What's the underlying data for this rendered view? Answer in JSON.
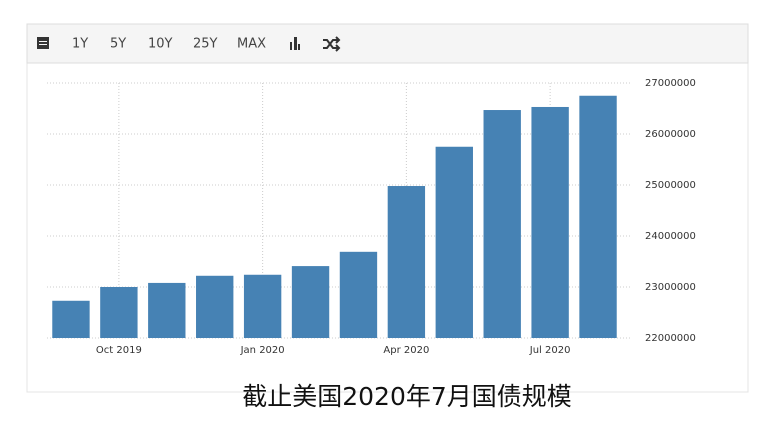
{
  "toolbar": {
    "buttons": [
      "1Y",
      "5Y",
      "10Y",
      "25Y",
      "MAX"
    ]
  },
  "chart_data": {
    "type": "bar",
    "categories": [
      null,
      "Oct 2019",
      null,
      null,
      "Jan 2020",
      null,
      null,
      "Apr 2020",
      null,
      null,
      "Jul 2020",
      null
    ],
    "values": [
      22730000,
      23000000,
      23080000,
      23220000,
      23240000,
      23410000,
      23690000,
      24980000,
      25750000,
      26470000,
      26530000,
      26750000
    ],
    "color": "#4682b4",
    "ylim": [
      22000000,
      27000000
    ],
    "yticks": [
      22000000,
      23000000,
      24000000,
      25000000,
      26000000,
      27000000
    ],
    "grid": true,
    "caption": "截止美国2020年7月国债规模"
  }
}
